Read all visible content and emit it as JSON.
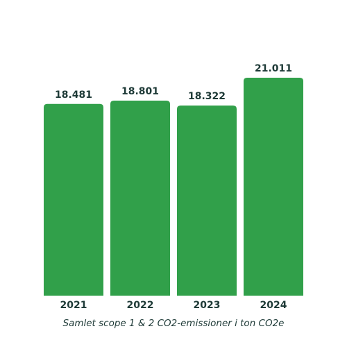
{
  "chart_data": {
    "type": "bar",
    "categories": [
      "2021",
      "2022",
      "2023",
      "2024"
    ],
    "values": [
      18481,
      18801,
      18322,
      21011
    ],
    "value_labels": [
      "18.481",
      "18.801",
      "18.322",
      "21.011"
    ],
    "title": "",
    "xlabel": "Samlet scope 1 & 2 CO2-emissioner i ton CO2e",
    "ylabel": "",
    "ylim": [
      0,
      21011
    ],
    "grid": false,
    "legend": "none"
  },
  "colors": {
    "bar": "#31a04a",
    "text": "#1e3a37"
  }
}
